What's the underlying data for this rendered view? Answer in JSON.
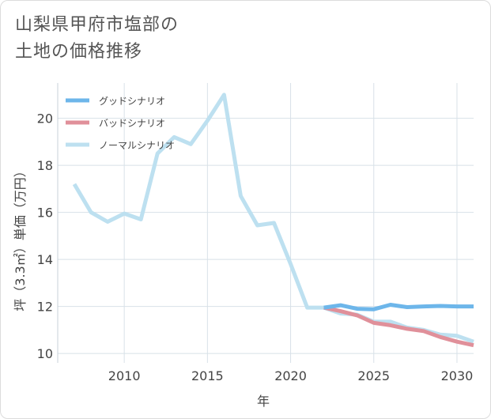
{
  "title_lines": [
    "山梨県甲府市塩部の",
    "土地の価格推移"
  ],
  "colors": {
    "good": "#6db6ea",
    "bad": "#e0909a",
    "normal": "#bde0f0",
    "grid": "#d8e1e8"
  },
  "chart_data": {
    "type": "line",
    "xlabel": "年",
    "ylabel": "坪（3.3㎡）単価（万円）",
    "xlim": [
      2006,
      2031
    ],
    "ylim": [
      9.6,
      21.5
    ],
    "xticks": [
      2010,
      2015,
      2020,
      2025,
      2030
    ],
    "yticks": [
      10,
      12,
      14,
      16,
      18,
      20
    ],
    "grid": true,
    "legend_position": "top-left",
    "series": [
      {
        "name": "グッドシナリオ",
        "color_key": "good",
        "x": [
          2022,
          2023,
          2024,
          2025,
          2026,
          2027,
          2028,
          2029,
          2030,
          2031
        ],
        "y": [
          11.95,
          12.05,
          11.9,
          11.88,
          12.07,
          11.97,
          12.0,
          12.02,
          12.0,
          12.0
        ]
      },
      {
        "name": "バッドシナリオ",
        "color_key": "bad",
        "x": [
          2022,
          2023,
          2024,
          2025,
          2026,
          2027,
          2028,
          2029,
          2030,
          2031
        ],
        "y": [
          11.95,
          11.8,
          11.62,
          11.3,
          11.2,
          11.05,
          10.95,
          10.7,
          10.5,
          10.35
        ]
      },
      {
        "name": "ノーマルシナリオ",
        "color_key": "normal",
        "x": [
          2007,
          2008,
          2009,
          2010,
          2011,
          2012,
          2013,
          2014,
          2015,
          2016,
          2017,
          2018,
          2019,
          2020,
          2021,
          2022,
          2023,
          2024,
          2025,
          2026,
          2027,
          2028,
          2029,
          2030,
          2031
        ],
        "y": [
          17.2,
          16.0,
          15.6,
          15.95,
          15.7,
          18.5,
          19.2,
          18.9,
          19.9,
          21.0,
          16.7,
          15.45,
          15.55,
          13.8,
          11.95,
          11.95,
          11.7,
          11.65,
          11.35,
          11.35,
          11.1,
          11.0,
          10.8,
          10.75,
          10.5
        ]
      }
    ]
  }
}
